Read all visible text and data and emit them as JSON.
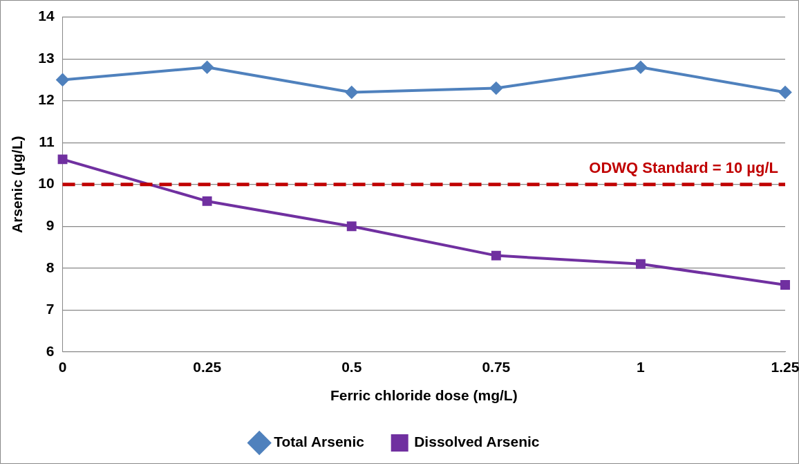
{
  "chart_data": {
    "type": "line",
    "xlabel": "Ferric chloride dose (mg/L)",
    "ylabel": "Arsenic (µg/L)",
    "x": [
      0,
      0.25,
      0.5,
      0.75,
      1,
      1.25
    ],
    "xlim": [
      0,
      1.25
    ],
    "xticks": [
      0,
      0.25,
      0.5,
      0.75,
      1,
      1.25
    ],
    "ylim": [
      6,
      14
    ],
    "yticks": [
      6,
      7,
      8,
      9,
      10,
      11,
      12,
      13,
      14
    ],
    "series": [
      {
        "name": "Total Arsenic",
        "color": "#4f81bd",
        "marker": "diamond",
        "values": [
          12.5,
          12.8,
          12.2,
          12.3,
          12.8,
          12.2
        ]
      },
      {
        "name": "Dissolved Arsenic",
        "color": "#7030a0",
        "marker": "square",
        "values": [
          10.6,
          9.6,
          9.0,
          8.3,
          8.1,
          7.6
        ]
      }
    ],
    "ref_lines": [
      {
        "axis": "y",
        "value": 10,
        "label": "ODWQ Standard = 10 µg/L",
        "color": "#c00000",
        "line_style": "dashed"
      }
    ],
    "grid": "y",
    "legend": "bottom",
    "line_style": "solid"
  }
}
